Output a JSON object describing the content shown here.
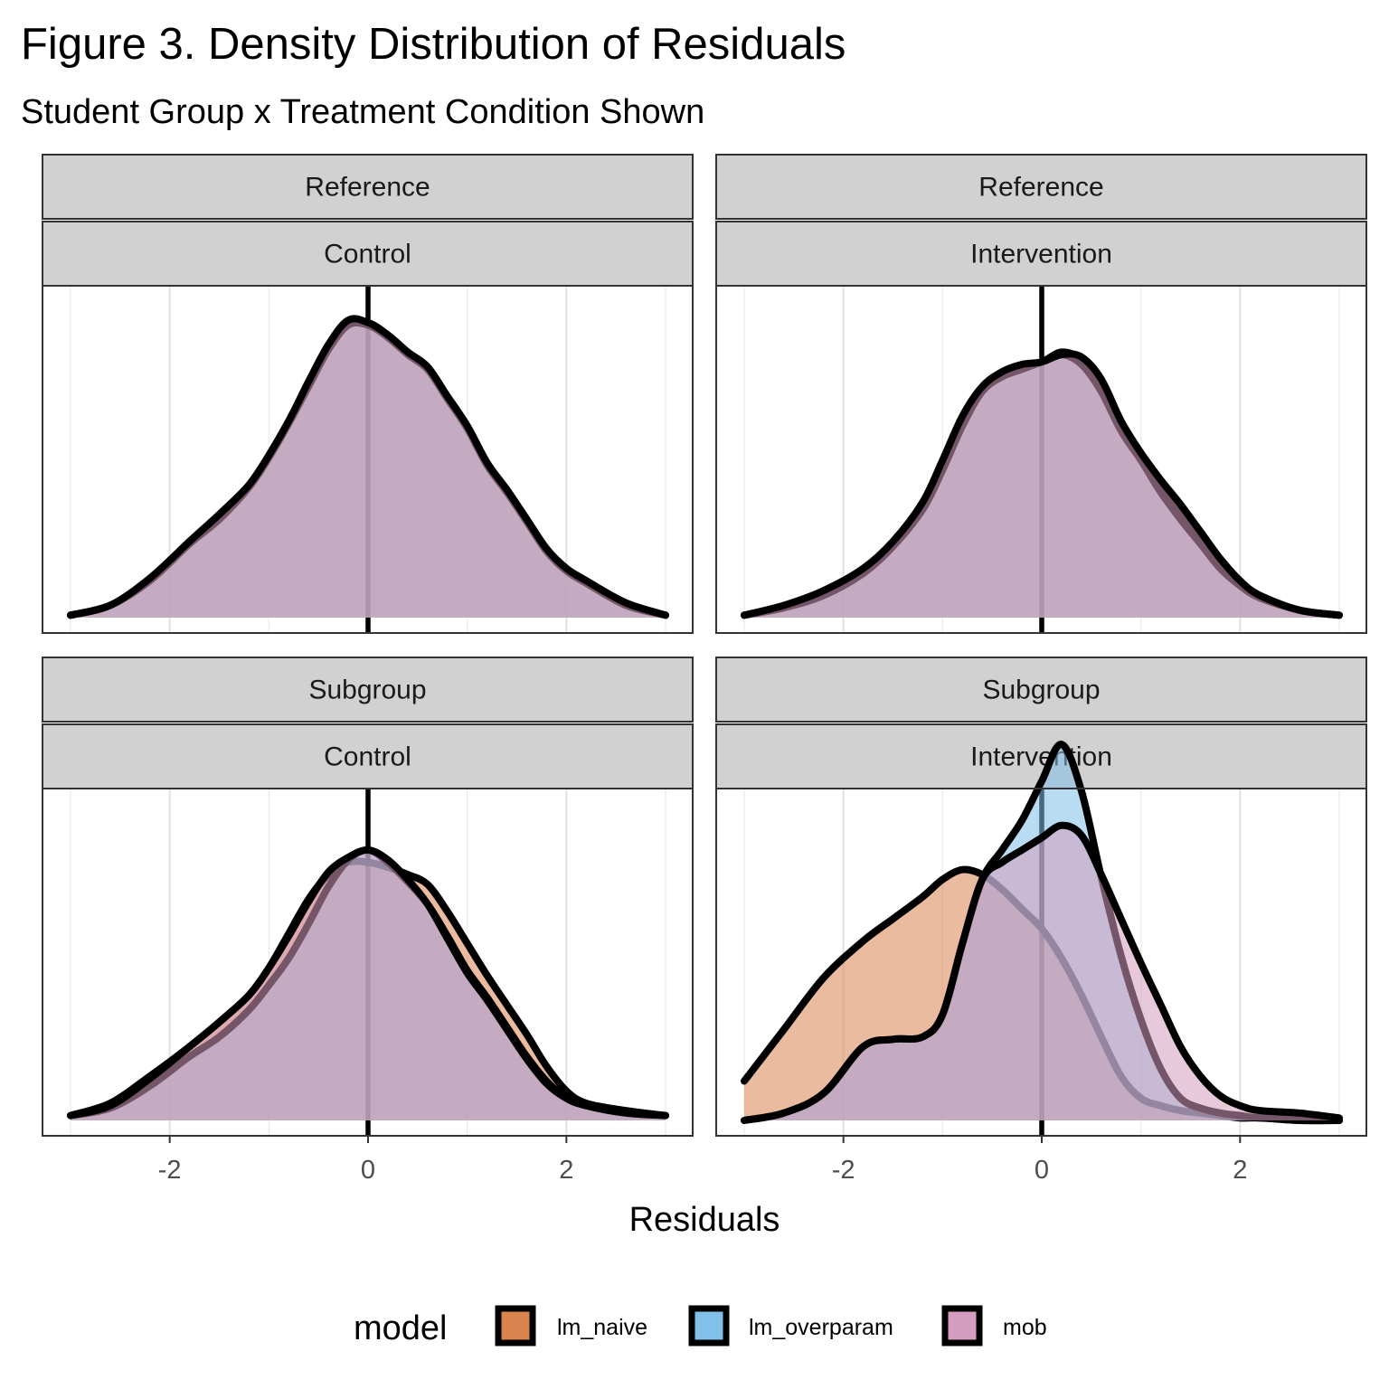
{
  "chart_data": {
    "type": "area",
    "title": "Figure 3. Density Distribution of Residuals",
    "subtitle": "Student Group x Treatment Condition Shown",
    "xlabel": "Residuals",
    "ylabel": "",
    "xlim": [
      -3.0,
      3.0
    ],
    "x_ticks": [
      -2,
      0,
      2
    ],
    "vline_x": 0,
    "grid": "vertical gridlines only",
    "legend": {
      "title": "model",
      "placement": "bottom",
      "entries": [
        {
          "label": "lm_naive",
          "color": "#d9834e"
        },
        {
          "label": "lm_overparam",
          "color": "#81c0e8"
        },
        {
          "label": "mob",
          "color": "#d49cbe"
        }
      ]
    },
    "panels": [
      {
        "group": "Reference",
        "condition": "Control",
        "ylim": [
          0,
          1.35
        ],
        "x": [
          -3.0,
          -2.6,
          -2.2,
          -1.8,
          -1.5,
          -1.2,
          -1.0,
          -0.8,
          -0.6,
          -0.4,
          -0.2,
          0.0,
          0.2,
          0.4,
          0.6,
          0.8,
          1.0,
          1.2,
          1.4,
          1.6,
          1.8,
          2.0,
          2.2,
          2.6,
          3.0
        ],
        "series": [
          {
            "name": "lm_naive",
            "values": [
              0.01,
              0.05,
              0.15,
              0.31,
              0.41,
              0.54,
              0.66,
              0.8,
              0.95,
              1.1,
              1.2,
              1.2,
              1.15,
              1.08,
              1.02,
              0.9,
              0.78,
              0.63,
              0.52,
              0.4,
              0.28,
              0.2,
              0.15,
              0.06,
              0.01
            ]
          },
          {
            "name": "lm_overparam",
            "values": [
              0.01,
              0.05,
              0.15,
              0.3,
              0.4,
              0.53,
              0.65,
              0.79,
              0.94,
              1.09,
              1.19,
              1.19,
              1.14,
              1.07,
              1.01,
              0.89,
              0.77,
              0.62,
              0.51,
              0.39,
              0.27,
              0.19,
              0.14,
              0.05,
              0.01
            ]
          },
          {
            "name": "mob",
            "values": [
              0.01,
              0.05,
              0.16,
              0.31,
              0.42,
              0.54,
              0.66,
              0.8,
              0.96,
              1.11,
              1.21,
              1.2,
              1.15,
              1.08,
              1.02,
              0.9,
              0.78,
              0.63,
              0.52,
              0.4,
              0.28,
              0.2,
              0.15,
              0.06,
              0.01
            ]
          }
        ]
      },
      {
        "group": "Reference",
        "condition": "Intervention",
        "ylim": [
          0,
          1.35
        ],
        "x": [
          -3.0,
          -2.6,
          -2.2,
          -1.8,
          -1.5,
          -1.2,
          -1.0,
          -0.8,
          -0.6,
          -0.4,
          -0.2,
          0.0,
          0.2,
          0.4,
          0.6,
          0.8,
          1.0,
          1.2,
          1.4,
          1.6,
          1.8,
          2.0,
          2.2,
          2.6,
          3.0
        ],
        "series": [
          {
            "name": "lm_naive",
            "values": [
              0.01,
              0.04,
              0.1,
              0.2,
              0.3,
              0.45,
              0.62,
              0.8,
              0.93,
              0.99,
              1.02,
              1.04,
              1.08,
              1.05,
              0.95,
              0.78,
              0.65,
              0.52,
              0.42,
              0.32,
              0.22,
              0.14,
              0.09,
              0.03,
              0.01
            ]
          },
          {
            "name": "lm_overparam",
            "values": [
              0.01,
              0.04,
              0.09,
              0.18,
              0.29,
              0.44,
              0.6,
              0.78,
              0.92,
              0.98,
              1.01,
              1.04,
              1.07,
              1.03,
              0.92,
              0.76,
              0.64,
              0.51,
              0.4,
              0.3,
              0.2,
              0.13,
              0.08,
              0.03,
              0.01
            ]
          },
          {
            "name": "mob",
            "values": [
              0.01,
              0.05,
              0.11,
              0.2,
              0.31,
              0.47,
              0.64,
              0.82,
              0.94,
              1.0,
              1.03,
              1.04,
              1.07,
              1.06,
              0.97,
              0.8,
              0.67,
              0.56,
              0.46,
              0.35,
              0.24,
              0.15,
              0.09,
              0.03,
              0.01
            ]
          }
        ]
      },
      {
        "group": "Subgroup",
        "condition": "Control",
        "ylim": [
          0,
          1.35
        ],
        "x": [
          -3.0,
          -2.6,
          -2.2,
          -1.8,
          -1.5,
          -1.2,
          -1.0,
          -0.8,
          -0.6,
          -0.4,
          -0.2,
          0.0,
          0.2,
          0.4,
          0.6,
          0.8,
          1.0,
          1.2,
          1.4,
          1.6,
          1.8,
          2.0,
          2.2,
          2.6,
          3.0
        ],
        "series": [
          {
            "name": "lm_naive",
            "values": [
              0.02,
              0.07,
              0.18,
              0.3,
              0.4,
              0.51,
              0.62,
              0.76,
              0.9,
              1.0,
              1.05,
              1.05,
              1.03,
              1.0,
              0.96,
              0.85,
              0.72,
              0.59,
              0.47,
              0.35,
              0.22,
              0.12,
              0.07,
              0.04,
              0.02
            ]
          },
          {
            "name": "lm_overparam",
            "values": [
              0.02,
              0.05,
              0.14,
              0.26,
              0.34,
              0.45,
              0.55,
              0.66,
              0.8,
              0.95,
              1.06,
              1.1,
              1.05,
              0.97,
              0.88,
              0.75,
              0.61,
              0.5,
              0.38,
              0.26,
              0.16,
              0.09,
              0.06,
              0.03,
              0.02
            ]
          },
          {
            "name": "mob",
            "values": [
              0.02,
              0.06,
              0.17,
              0.3,
              0.4,
              0.51,
              0.62,
              0.75,
              0.89,
              1.01,
              1.07,
              1.1,
              1.06,
              0.98,
              0.88,
              0.74,
              0.6,
              0.49,
              0.37,
              0.25,
              0.15,
              0.09,
              0.06,
              0.03,
              0.02
            ]
          }
        ]
      },
      {
        "group": "Subgroup",
        "condition": "Intervention",
        "ylim": [
          0,
          1.35
        ],
        "x": [
          -3.0,
          -2.6,
          -2.2,
          -1.8,
          -1.5,
          -1.2,
          -1.0,
          -0.8,
          -0.6,
          -0.4,
          -0.2,
          0.0,
          0.2,
          0.4,
          0.6,
          0.8,
          1.0,
          1.2,
          1.4,
          1.6,
          1.8,
          2.0,
          2.2,
          2.6,
          3.0
        ],
        "series": [
          {
            "name": "lm_naive",
            "values": [
              0.16,
              0.37,
              0.58,
              0.73,
              0.82,
              0.91,
              0.98,
              1.02,
              1.0,
              0.94,
              0.86,
              0.78,
              0.66,
              0.51,
              0.34,
              0.18,
              0.09,
              0.06,
              0.04,
              0.03,
              0.02,
              0.01,
              0.01,
              0.0,
              0.0
            ]
          },
          {
            "name": "lm_overparam",
            "values": [
              0.0,
              0.03,
              0.11,
              0.3,
              0.33,
              0.34,
              0.43,
              0.72,
              0.98,
              1.1,
              1.22,
              1.38,
              1.53,
              1.34,
              0.99,
              0.67,
              0.41,
              0.21,
              0.09,
              0.05,
              0.03,
              0.02,
              0.01,
              0.01,
              0.0
            ]
          },
          {
            "name": "mob",
            "values": [
              0.0,
              0.03,
              0.11,
              0.3,
              0.33,
              0.34,
              0.43,
              0.72,
              0.98,
              1.05,
              1.1,
              1.15,
              1.2,
              1.16,
              1.0,
              0.82,
              0.64,
              0.47,
              0.3,
              0.18,
              0.1,
              0.06,
              0.04,
              0.03,
              0.01
            ]
          }
        ]
      }
    ]
  }
}
